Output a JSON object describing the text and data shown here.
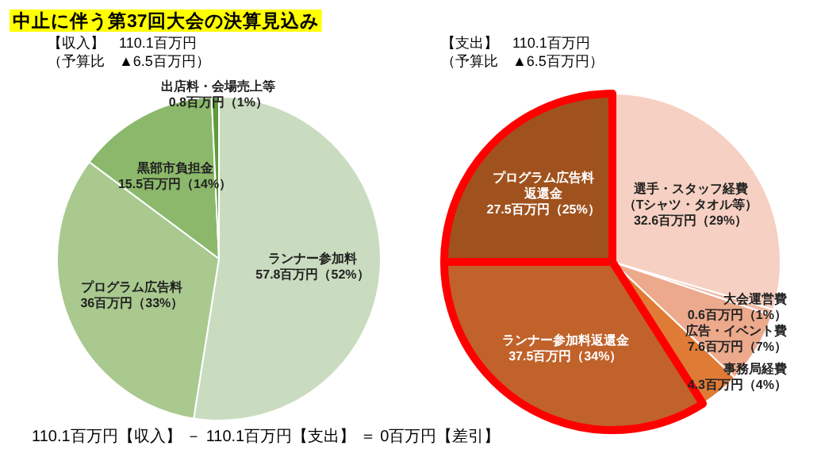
{
  "chart_data": [
    {
      "type": "pie",
      "title": "中止に伴う第37回大会の決算見込み",
      "subtitle": [
        "【収入】　110.1百万円",
        "（予算比　▲6.5百万円）"
      ],
      "categories": [
        "ランナー参加料",
        "プログラム広告料",
        "黒部市負担金",
        "出店料・会場売上等"
      ],
      "values": [
        57.8,
        36,
        15.5,
        0.8
      ],
      "value_labels": [
        "57.8百万円（52%）",
        "36百万円（33%）",
        "15.5百万円（14%）",
        "0.8百万円（1%）"
      ],
      "colors": [
        "#c9dcbf",
        "#a9c98f",
        "#8bb86a",
        "#5f9a3c"
      ],
      "annotations": [
        "110.1百万円【収入】 － 110.1百万円【支出】 ＝ 0百万円【差引】"
      ]
    },
    {
      "type": "pie",
      "subtitle": [
        "【支出】　110.1百万円",
        "（予算比　▲6.5百万円）"
      ],
      "categories": [
        [
          "選手・スタッフ経費",
          "（Tシャツ・タオル等）"
        ],
        "大会運営費",
        "広告・イベント費",
        "事務局経費",
        "ランナー参加料返還金",
        [
          "プログラム広告料",
          "返還金"
        ]
      ],
      "values": [
        32.6,
        0.6,
        7.6,
        4.3,
        37.5,
        27.5
      ],
      "value_labels": [
        "32.6百万円（29%）",
        "0.6百万円（1%）",
        "7.6百万円（7%）",
        "4.3百万円（4%）",
        "37.5百万円（34%）",
        "27.5百万円（25%）"
      ],
      "colors": [
        "#f6d0c2",
        "#f0bba6",
        "#eca98c",
        "#e07b36",
        "#c0622a",
        "#a0521e"
      ]
    }
  ]
}
